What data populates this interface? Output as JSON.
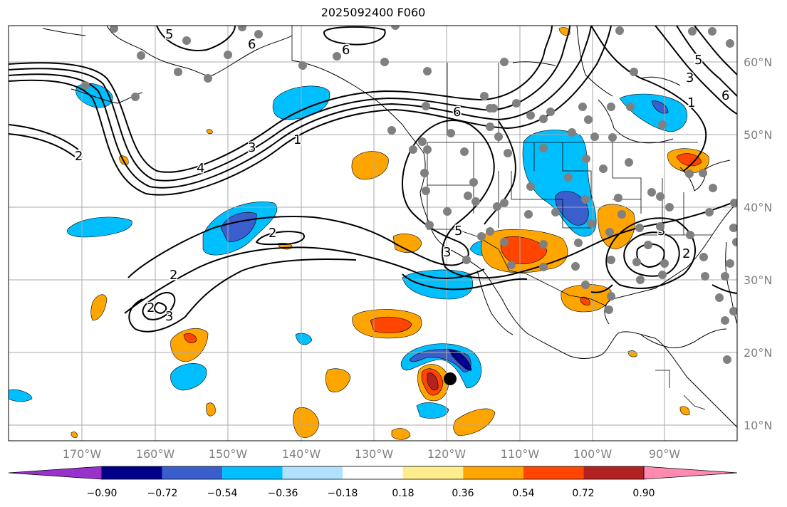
{
  "title": "2025092400 F060",
  "longitudes": [
    "170°W",
    "160°W",
    "150°W",
    "140°W",
    "130°W",
    "120°W",
    "110°W",
    "100°W",
    "90°W"
  ],
  "latitudes": [
    "60°N",
    "50°N",
    "40°N",
    "30°N",
    "20°N",
    "10°N"
  ],
  "colorbar": {
    "ticks": [
      "−0.90",
      "−0.72",
      "−0.54",
      "−0.36",
      "−0.18",
      "0.18",
      "0.36",
      "0.54",
      "0.72",
      "0.90"
    ],
    "colors": [
      "#9932cc",
      "#00008b",
      "#3a5fcd",
      "#00bfff",
      "#b0e2ff",
      "#ffffff",
      "#ffec8b",
      "#ffa500",
      "#ff4500",
      "#b22222",
      "#ff8cb0"
    ]
  },
  "contour_labels": [
    "5",
    "6",
    "6",
    "1",
    "2",
    "3",
    "4",
    "2",
    "2",
    "3",
    "2",
    "3",
    "5",
    "6",
    "5",
    "3",
    "1",
    "3",
    "2",
    "6"
  ],
  "marker": "storm-center"
}
